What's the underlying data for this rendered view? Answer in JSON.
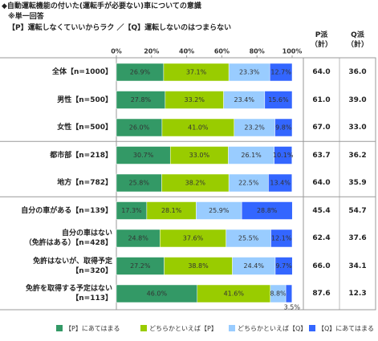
{
  "chart_data": {
    "type": "stacked_bar_horizontal",
    "title": "◆自動運転機能の付いた(運転手が必要ない)車についての意識",
    "subtitle": "※単一回答",
    "question": "【P】運転しなくていいからラク ／【Q】運転しないのはつまらない",
    "categories": [
      "全体【n=1000】",
      "男性【n=500】",
      "女性【n=500】",
      "都市部【n=218】",
      "地方【n=782】",
      "自分の車がある【n=139】",
      "自分の車はない\n（免許はある）【n=428】",
      "免許はないが、取得予定\n【n=320】",
      "免許を取得する予定はない\n【n=113】"
    ],
    "xlim": [
      0,
      100
    ],
    "xticks": [
      {
        "value": 0,
        "label": "0%"
      },
      {
        "value": 20,
        "label": "20%"
      },
      {
        "value": 40,
        "label": "40%"
      },
      {
        "value": 60,
        "label": "60%"
      },
      {
        "value": 80,
        "label": "80%"
      },
      {
        "value": 100,
        "label": "100%"
      }
    ],
    "series": [
      {
        "name": "【P】にあてはまる",
        "color": "#339966",
        "values": [
          26.9,
          27.8,
          26.0,
          30.7,
          25.8,
          17.3,
          24.8,
          27.2,
          46.0
        ],
        "value_labels": [
          "26.9%",
          "27.8%",
          "26.0%",
          "30.7%",
          "25.8%",
          "17.3%",
          "24.8%",
          "27.2%",
          "46.0%"
        ]
      },
      {
        "name": "どちらかといえば【P】",
        "color": "#99cc00",
        "values": [
          37.1,
          33.2,
          41.0,
          33.0,
          38.2,
          28.1,
          37.6,
          38.8,
          41.6
        ],
        "value_labels": [
          "37.1%",
          "33.2%",
          "41.0%",
          "33.0%",
          "38.2%",
          "28.1%",
          "37.6%",
          "38.8%",
          "41.6%"
        ]
      },
      {
        "name": "どちらかといえば【Q】",
        "color": "#99ccff",
        "values": [
          23.3,
          23.4,
          23.2,
          26.1,
          22.5,
          25.9,
          25.5,
          24.4,
          8.8
        ],
        "value_labels": [
          "23.3%",
          "23.4%",
          "23.2%",
          "26.1%",
          "22.5%",
          "25.9%",
          "25.5%",
          "24.4%",
          "8.8%"
        ]
      },
      {
        "name": "【Q】にあてはまる",
        "color": "#3366ff",
        "values": [
          12.7,
          15.6,
          9.8,
          10.1,
          13.4,
          28.8,
          12.1,
          9.7,
          3.5
        ],
        "value_labels": [
          "12.7%",
          "15.6%",
          "9.8%",
          "10.1%",
          "13.4%",
          "28.8%",
          "12.1%",
          "9.7%",
          "3.5%"
        ]
      }
    ],
    "table": {
      "headers": [
        "P派\n（計）",
        "Q派\n（計）"
      ],
      "p_values": [
        "64.0",
        "61.0",
        "67.0",
        "63.7",
        "64.0",
        "45.4",
        "62.4",
        "66.0",
        "87.6"
      ],
      "q_values": [
        "36.0",
        "39.0",
        "33.0",
        "36.2",
        "35.9",
        "54.7",
        "37.6",
        "34.1",
        "12.3"
      ]
    }
  }
}
